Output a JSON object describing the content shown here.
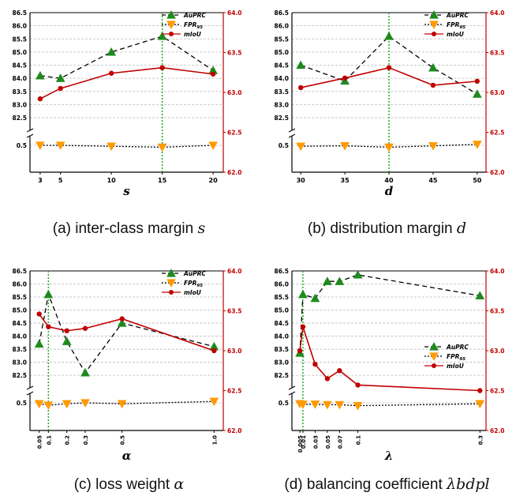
{
  "captions": [
    {
      "text": "(a) inter-class margin ",
      "var": "s"
    },
    {
      "text": "(b) distribution margin ",
      "var": "d"
    },
    {
      "text": "(c) loss weight ",
      "var": "α"
    },
    {
      "text": "(d) balancing coefficient ",
      "var": "λbdpl"
    }
  ],
  "colors": {
    "auprc": "#1e8a1e",
    "fpr": "#ff9a00",
    "miou": "#c00000",
    "dashed_black": "#000000",
    "highlight": "#22aa22",
    "grid": "#bbbbbb"
  },
  "chart_data": [
    {
      "type": "line",
      "xlabel": "s",
      "legend": [
        "AuPRC",
        "FPR95",
        "mIoU"
      ],
      "legend_position": "top-right",
      "categories": [
        "3",
        "5",
        "10",
        "15",
        "20"
      ],
      "x": [
        3,
        5,
        10,
        15,
        20
      ],
      "xlim": [
        2,
        21
      ],
      "highlight_x": 15,
      "left_ticks": [
        "82.5",
        "83.0",
        "83.5",
        "84.0",
        "84.5",
        "85.0",
        "85.5",
        "86.0",
        "86.5"
      ],
      "left_low_tick": "0.5",
      "right_ticks": [
        "62.0",
        "62.5",
        "63.0",
        "63.5",
        "64.0"
      ],
      "series": [
        {
          "name": "AuPRC",
          "axis": "left",
          "values": [
            84.1,
            84.0,
            85.0,
            85.6,
            84.3
          ]
        },
        {
          "name": "FPR95",
          "axis": "left-low",
          "values": [
            0.5,
            0.5,
            0.48,
            0.46,
            0.5
          ]
        },
        {
          "name": "mIoU",
          "axis": "right",
          "values": [
            62.92,
            63.05,
            63.24,
            63.31,
            63.23
          ]
        }
      ]
    },
    {
      "type": "line",
      "xlabel": "d",
      "legend": [
        "AuPRC",
        "FPR95",
        "mIoU"
      ],
      "legend_position": "top-right",
      "categories": [
        "30",
        "35",
        "40",
        "45",
        "50"
      ],
      "x": [
        30,
        35,
        40,
        45,
        50
      ],
      "xlim": [
        29,
        51
      ],
      "highlight_x": 40,
      "left_ticks": [
        "82.5",
        "83.0",
        "83.5",
        "84.0",
        "84.5",
        "85.0",
        "85.5",
        "86.0",
        "86.5"
      ],
      "left_low_tick": "0.5",
      "right_ticks": [
        "62.0",
        "62.5",
        "63.0",
        "63.5",
        "64.0"
      ],
      "series": [
        {
          "name": "AuPRC",
          "axis": "left",
          "values": [
            84.5,
            83.9,
            85.6,
            84.4,
            83.4
          ]
        },
        {
          "name": "FPR95",
          "axis": "left-low",
          "values": [
            0.48,
            0.49,
            0.46,
            0.49,
            0.52
          ]
        },
        {
          "name": "mIoU",
          "axis": "right",
          "values": [
            63.06,
            63.18,
            63.31,
            63.09,
            63.14
          ]
        }
      ]
    },
    {
      "type": "line",
      "xlabel": "α",
      "legend": [
        "AuPRC",
        "FPR95",
        "mIoU"
      ],
      "legend_position": "top-right",
      "categories": [
        "0.05",
        "0.1",
        "0.2",
        "0.3",
        "0.5",
        "1.0"
      ],
      "x": [
        0.05,
        0.1,
        0.2,
        0.3,
        0.5,
        1.0
      ],
      "xlim": [
        0.0,
        1.05
      ],
      "highlight_x": 0.1,
      "left_ticks": [
        "82.5",
        "83.0",
        "83.5",
        "84.0",
        "84.5",
        "85.0",
        "85.5",
        "86.0",
        "86.5"
      ],
      "left_low_tick": "0.5",
      "right_ticks": [
        "62.0",
        "62.5",
        "63.0",
        "63.5",
        "64.0"
      ],
      "series": [
        {
          "name": "AuPRC",
          "axis": "left",
          "values": [
            83.7,
            85.6,
            83.8,
            82.6,
            84.5,
            83.6
          ]
        },
        {
          "name": "FPR95",
          "axis": "left-low",
          "values": [
            0.48,
            0.45,
            0.48,
            0.5,
            0.48,
            0.53
          ]
        },
        {
          "name": "mIoU",
          "axis": "right",
          "values": [
            63.46,
            63.3,
            63.25,
            63.28,
            63.4,
            63.0
          ]
        }
      ]
    },
    {
      "type": "line",
      "xlabel": "λ",
      "legend": [
        "AuPRC",
        "FPR95",
        "mIoU"
      ],
      "legend_position": "middle-right",
      "categories": [
        "0.005",
        "0.01",
        "0.03",
        "0.05",
        "0.07",
        "0.1",
        "0.3"
      ],
      "x": [
        0.005,
        0.01,
        0.03,
        0.05,
        0.07,
        0.1,
        0.3
      ],
      "xlim": [
        -0.008,
        0.31
      ],
      "highlight_x": 0.01,
      "left_ticks": [
        "82.5",
        "83.0",
        "83.5",
        "84.0",
        "84.5",
        "85.0",
        "85.5",
        "86.0",
        "86.5"
      ],
      "left_low_tick": "0.5",
      "right_ticks": [
        "62.0",
        "62.5",
        "63.0",
        "63.5",
        "64.0"
      ],
      "series": [
        {
          "name": "AuPRC",
          "axis": "left",
          "values": [
            83.35,
            85.6,
            85.45,
            86.1,
            86.1,
            86.35,
            85.55
          ]
        },
        {
          "name": "FPR95",
          "axis": "left-low",
          "values": [
            0.48,
            0.47,
            0.47,
            0.46,
            0.46,
            0.44,
            0.48
          ]
        },
        {
          "name": "mIoU",
          "axis": "right",
          "values": [
            63.0,
            63.3,
            62.83,
            62.65,
            62.75,
            62.57,
            62.5
          ]
        }
      ]
    }
  ]
}
